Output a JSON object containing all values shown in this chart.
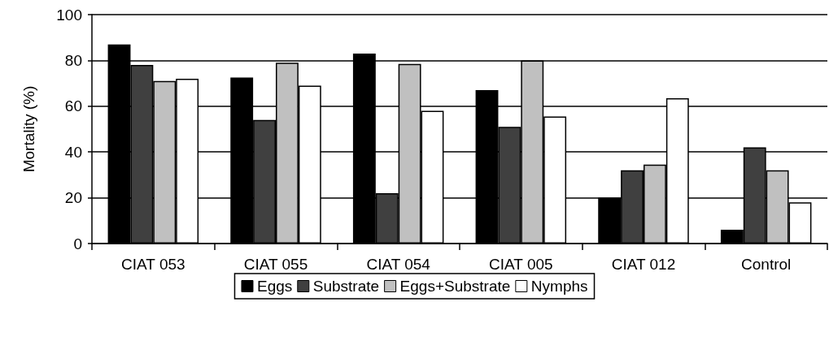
{
  "chart_data": {
    "type": "bar",
    "ylabel": "Mortality (%)",
    "categories": [
      "CIAT 053",
      "CIAT 055",
      "CIAT 054",
      "CIAT 005",
      "CIAT 012",
      "Control"
    ],
    "series": [
      {
        "name": "Eggs",
        "color": "#000000",
        "values": [
          87,
          72.5,
          83,
          67,
          20,
          6
        ]
      },
      {
        "name": "Substrate",
        "color": "#404040",
        "values": [
          78,
          54,
          22,
          51,
          32,
          42
        ]
      },
      {
        "name": "Eggs+Substrate",
        "color": "#c0c0c0",
        "values": [
          71,
          79,
          78.5,
          80,
          34.5,
          32
        ]
      },
      {
        "name": "Nymphs",
        "color": "#ffffff",
        "values": [
          72,
          69,
          58,
          55.5,
          63.5,
          18
        ]
      }
    ],
    "ylim": [
      0,
      100
    ],
    "yticks": [
      0,
      20,
      40,
      60,
      80,
      100
    ],
    "grid": "y",
    "legend": "bottom"
  }
}
